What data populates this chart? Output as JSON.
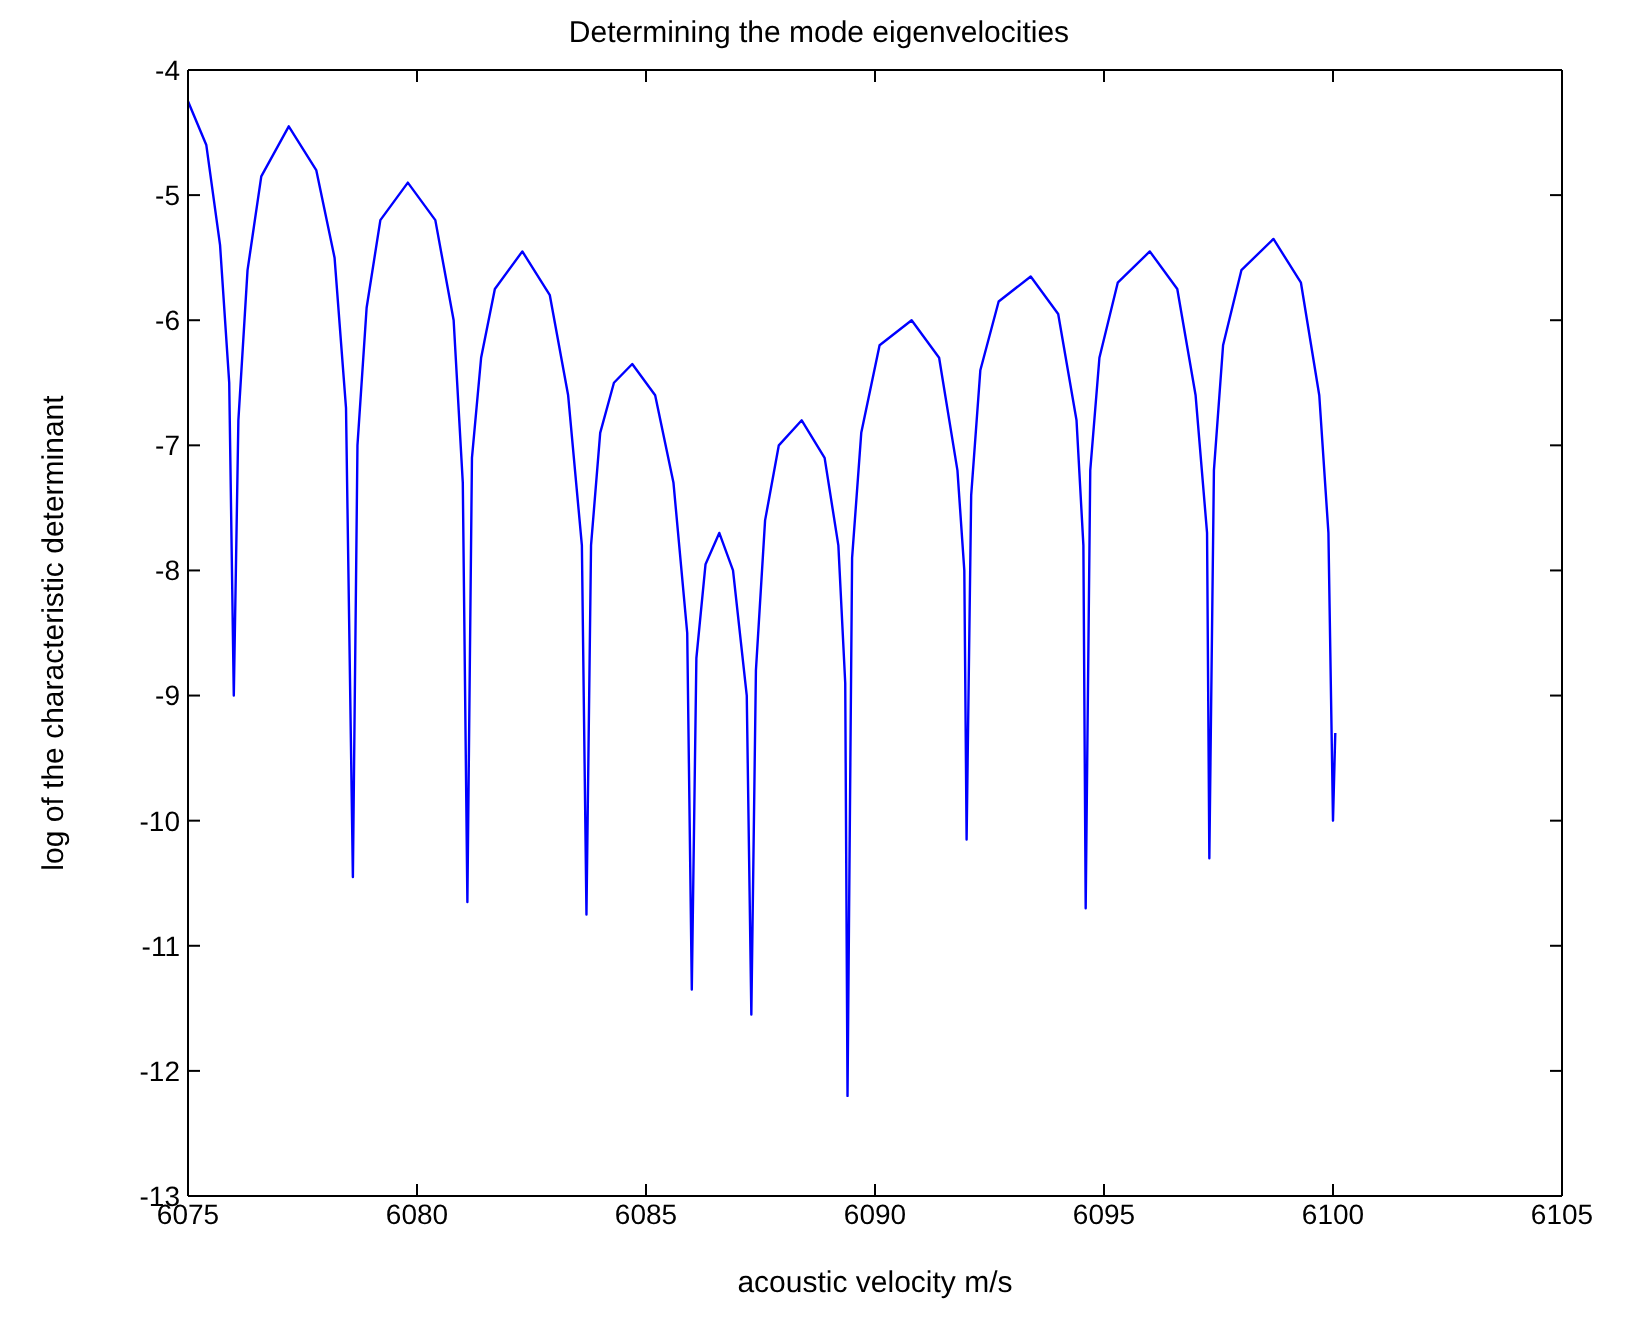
{
  "chart_data": {
    "type": "line",
    "title": "Determining the mode eigenvelocities",
    "xlabel": "acoustic velocity m/s",
    "ylabel": "log of the characteristic determinant",
    "xlim": [
      6075,
      6105
    ],
    "xticks": [
      6075,
      6080,
      6085,
      6090,
      6095,
      6100,
      6105
    ],
    "ylim": [
      -13,
      -4
    ],
    "yticks": [
      -13,
      -12,
      -11,
      -10,
      -9,
      -8,
      -7,
      -6,
      -5,
      -4
    ],
    "grid": false,
    "legend": false,
    "marker": "none",
    "line_style": "solid",
    "series": [
      {
        "color": "#0000ff",
        "x": [
          6075,
          6075.4,
          6075.7,
          6075.9,
          6076.0,
          6076.1,
          6076.3,
          6076.6,
          6077.2,
          6077.8,
          6078.2,
          6078.45,
          6078.6,
          6078.7,
          6078.9,
          6079.2,
          6079.8,
          6080.4,
          6080.8,
          6081.0,
          6081.1,
          6081.2,
          6081.4,
          6081.7,
          6082.3,
          6082.9,
          6083.3,
          6083.6,
          6083.7,
          6083.8,
          6084.0,
          6084.3,
          6084.7,
          6085.2,
          6085.6,
          6085.9,
          6086.0,
          6086.1,
          6086.3,
          6086.6,
          6086.9,
          6087.2,
          6087.3,
          6087.4,
          6087.6,
          6087.9,
          6088.4,
          6088.9,
          6089.2,
          6089.35,
          6089.4,
          6089.5,
          6089.7,
          6090.1,
          6090.8,
          6091.4,
          6091.8,
          6091.95,
          6092.0,
          6092.1,
          6092.3,
          6092.7,
          6093.4,
          6094.0,
          6094.4,
          6094.55,
          6094.6,
          6094.7,
          6094.9,
          6095.3,
          6096.0,
          6096.6,
          6097.0,
          6097.25,
          6097.3,
          6097.4,
          6097.6,
          6098.0,
          6098.7,
          6099.3,
          6099.7,
          6099.9,
          6100.0,
          6100.05
        ],
        "values": [
          -4.25,
          -4.6,
          -5.4,
          -6.5,
          -9.0,
          -6.8,
          -5.6,
          -4.85,
          -4.45,
          -4.8,
          -5.5,
          -6.7,
          -10.45,
          -7.0,
          -5.9,
          -5.2,
          -4.9,
          -5.2,
          -6.0,
          -7.3,
          -10.65,
          -7.1,
          -6.3,
          -5.75,
          -5.45,
          -5.8,
          -6.6,
          -7.8,
          -10.75,
          -7.8,
          -6.9,
          -6.5,
          -6.35,
          -6.6,
          -7.3,
          -8.5,
          -11.35,
          -8.7,
          -7.95,
          -7.7,
          -8.0,
          -9.0,
          -11.55,
          -8.8,
          -7.6,
          -7.0,
          -6.8,
          -7.1,
          -7.8,
          -8.9,
          -12.2,
          -7.9,
          -6.9,
          -6.2,
          -6.0,
          -6.3,
          -7.2,
          -8.0,
          -10.15,
          -7.4,
          -6.4,
          -5.85,
          -5.65,
          -5.95,
          -6.8,
          -7.8,
          -10.7,
          -7.2,
          -6.3,
          -5.7,
          -5.45,
          -5.75,
          -6.6,
          -7.7,
          -10.3,
          -7.2,
          -6.2,
          -5.6,
          -5.35,
          -5.7,
          -6.6,
          -7.7,
          -10.0,
          -9.3
        ]
      }
    ]
  }
}
